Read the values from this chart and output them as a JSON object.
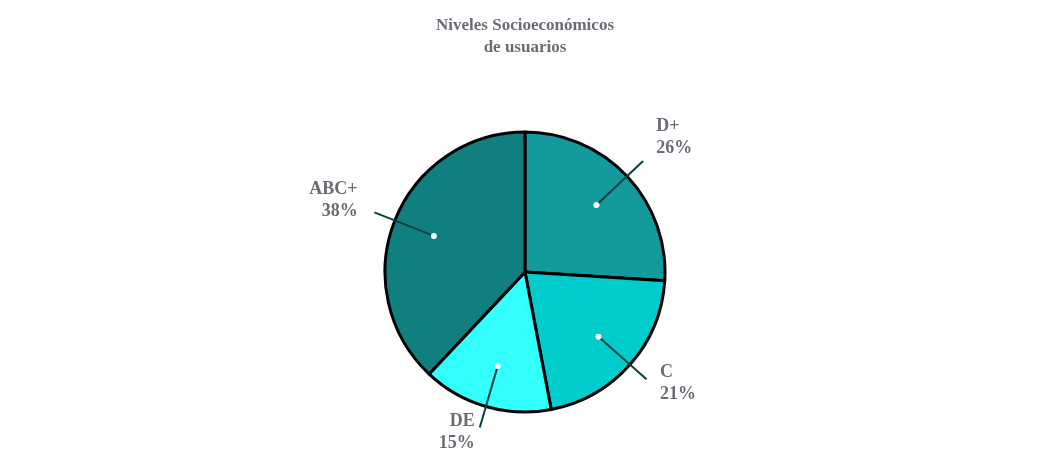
{
  "chart_data": {
    "type": "pie",
    "title": "Niveles Socioeconómicos\nde usuarios",
    "categories": [
      "D+",
      "C",
      "DE",
      "ABC+"
    ],
    "values": [
      26,
      21,
      15,
      38
    ],
    "value_labels": [
      "26%",
      "21%",
      "15%",
      "38%"
    ],
    "colors": [
      "#139a9c",
      "#00cccc",
      "#33ffff",
      "#0f7f80"
    ],
    "legend": false
  }
}
